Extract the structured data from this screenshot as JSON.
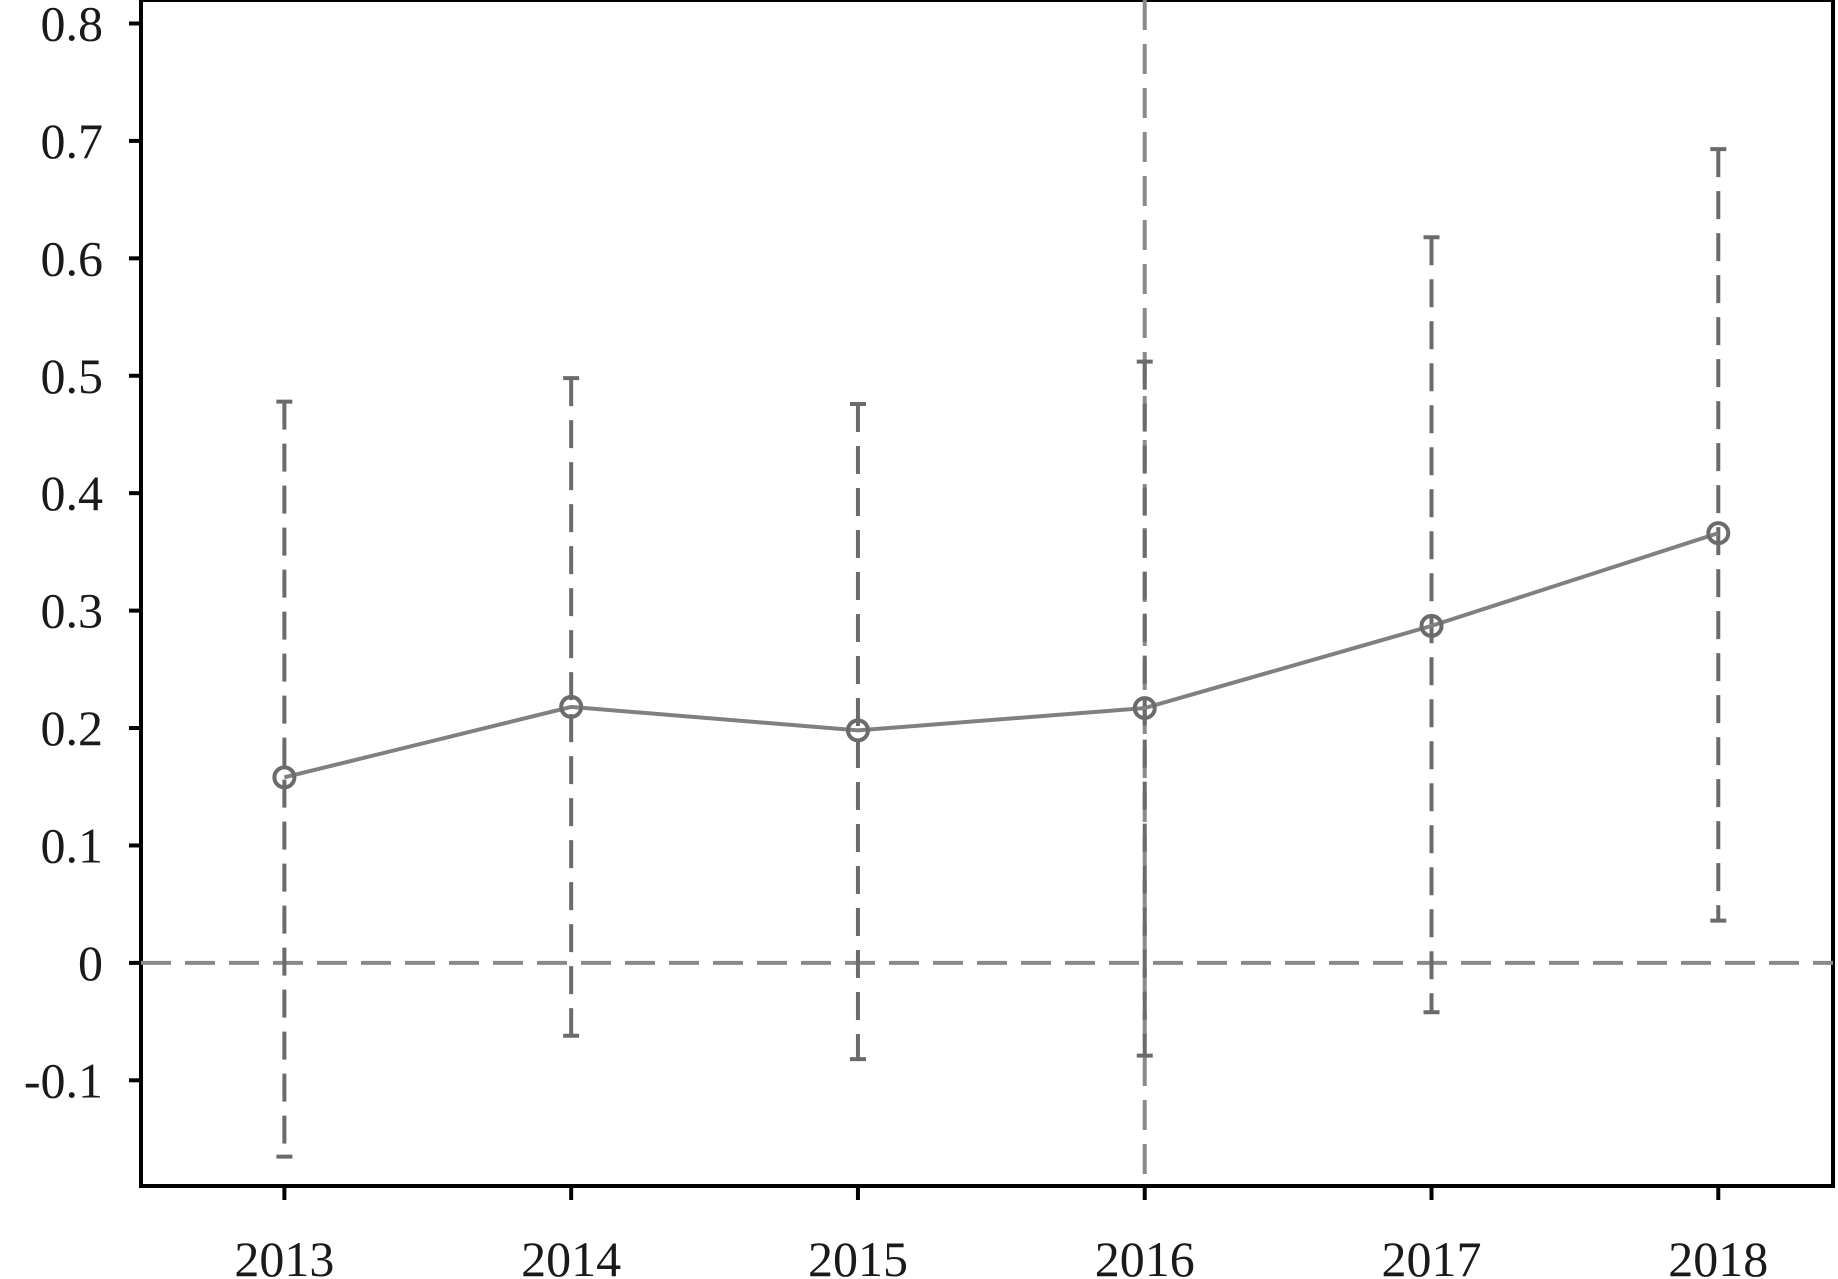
{
  "chart_data": {
    "type": "line",
    "x": [
      2013,
      2014,
      2015,
      2016,
      2017,
      2018
    ],
    "x_tick_labels": [
      "2013",
      "2014",
      "2015",
      "2016",
      "2017",
      "2018"
    ],
    "y_tick_values": [
      -0.1,
      0,
      0.1,
      0.2,
      0.3,
      0.4,
      0.5,
      0.6,
      0.7,
      0.8
    ],
    "y_tick_labels": [
      "-0.1",
      "0",
      "0.1",
      "0.2",
      "0.3",
      "0.4",
      "0.5",
      "0.6",
      "0.7",
      "0.8"
    ],
    "series": [
      {
        "values": [
          0.158,
          0.218,
          0.198,
          0.217,
          0.287,
          0.366
        ],
        "ci_lower": [
          -0.165,
          -0.062,
          -0.082,
          -0.079,
          -0.042,
          0.036
        ],
        "ci_upper": [
          0.478,
          0.498,
          0.476,
          0.512,
          0.618,
          0.693
        ]
      }
    ],
    "ylim": [
      -0.19,
      0.82
    ],
    "xlim": [
      2012.5,
      2018.4
    ],
    "reference_lines": [
      {
        "axis": "y",
        "value": 0,
        "style": "dashed"
      },
      {
        "axis": "x",
        "value": 2016,
        "style": "dashed"
      }
    ],
    "title": "",
    "xlabel": "",
    "ylabel": "",
    "grid": false,
    "legend": "none",
    "colors": {
      "line": "#808080",
      "errorbar": "#6b6b6b",
      "reference": "#8a8a8a",
      "axis": "#000000"
    }
  }
}
